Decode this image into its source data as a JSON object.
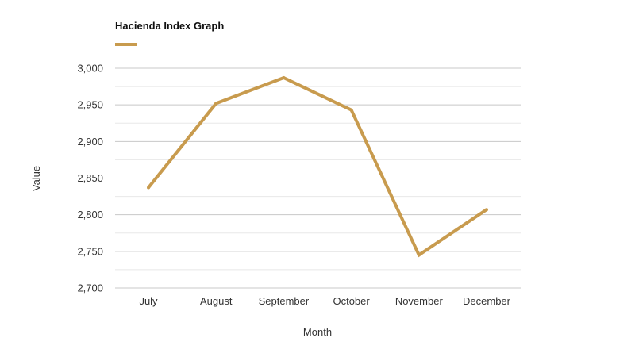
{
  "chart_data": {
    "type": "line",
    "title": "Hacienda Index Graph",
    "xlabel": "Month",
    "ylabel": "Value",
    "categories": [
      "July",
      "August",
      "September",
      "October",
      "November",
      "December"
    ],
    "series": [
      {
        "values": [
          2837,
          2952,
          2987,
          2943,
          2745,
          2807
        ],
        "color": "#C89B4E"
      }
    ],
    "ylim": [
      2700,
      3000
    ],
    "yticks": [
      2700,
      2750,
      2800,
      2850,
      2900,
      2950,
      3000
    ],
    "ytick_labels": [
      "2,700",
      "2,750",
      "2,800",
      "2,850",
      "2,900",
      "2,950",
      "3,000"
    ],
    "grid": true,
    "legend": "top-left",
    "colors": {
      "major_grid": "#c8c8c8",
      "minor_grid": "#e8e8e8"
    }
  }
}
